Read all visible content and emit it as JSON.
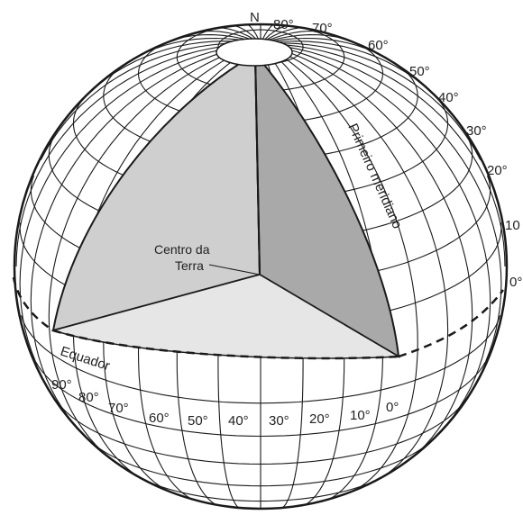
{
  "labels": {
    "north": "N",
    "center": [
      "Centro da",
      "Terra"
    ],
    "prime_meridian": "Primeiro meridiano",
    "equator": "Equador"
  },
  "latitude_labels": [
    "80°",
    "70°",
    "60°",
    "50°",
    "40°",
    "30°",
    "20°",
    "10",
    "0°"
  ],
  "longitude_labels": [
    "90°",
    "80°",
    "70°",
    "60°",
    "50°",
    "40°",
    "30°",
    "20°",
    "10°",
    "0°"
  ],
  "colors": {
    "outline": "#1a1a1a",
    "section_left": "#cfcfcf",
    "section_right": "#a9a9a9",
    "section_bottom": "#e6e6e6",
    "background": "#ffffff"
  }
}
